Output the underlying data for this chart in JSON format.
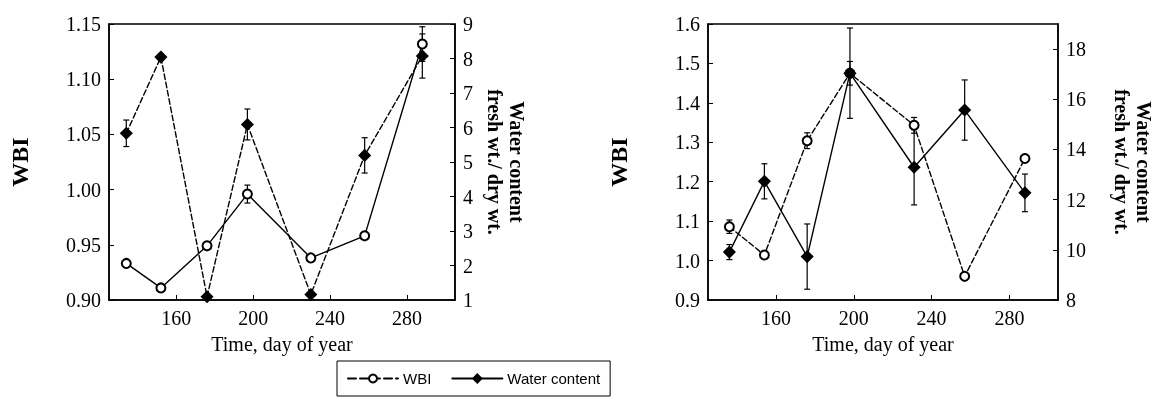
{
  "chart_data": [
    {
      "type": "line",
      "xlabel": "Time, day of year",
      "ylabel": "WBI",
      "y2label": "Water content\nfresh wt./ dry wt.",
      "xlim": [
        125,
        305
      ],
      "xticks": [
        160,
        200,
        240,
        280
      ],
      "ylim": [
        0.9,
        1.15
      ],
      "yticks": [
        {
          "value": 0.9,
          "label": "0.90"
        },
        {
          "value": 0.95,
          "label": "0.95"
        },
        {
          "value": 1.0,
          "label": "1.00"
        },
        {
          "value": 1.05,
          "label": "1.05"
        },
        {
          "value": 1.1,
          "label": "1.10"
        },
        {
          "value": 1.15,
          "label": "1.15"
        }
      ],
      "y2lim": [
        1,
        9
      ],
      "y2ticks": [
        1,
        2,
        3,
        4,
        5,
        6,
        7,
        8,
        9
      ],
      "legend": false,
      "grid": false,
      "series": [
        {
          "axis": "y",
          "line_style": "dashed",
          "marker": "diamond",
          "color": "#000000",
          "x": [
            134,
            152,
            176,
            197,
            230,
            258,
            288
          ],
          "values": [
            1.051,
            1.12,
            0.903,
            1.059,
            0.905,
            1.031,
            1.121
          ],
          "errors": [
            0.012,
            0.003,
            null,
            0.014,
            null,
            0.016,
            0.02
          ]
        },
        {
          "axis": "y2",
          "line_style": "solid",
          "marker": "circle",
          "color": "#000000",
          "x": [
            134,
            152,
            176,
            197,
            230,
            258,
            288
          ],
          "values": [
            2.06,
            1.35,
            2.57,
            4.07,
            2.22,
            2.86,
            8.42
          ],
          "errors": [
            null,
            null,
            null,
            0.26,
            null,
            null,
            0.5
          ]
        }
      ]
    },
    {
      "type": "line",
      "xlabel": "Time, day of year",
      "ylabel": "WBI",
      "y2label": "Water content\nfresh wt./ dry wt.",
      "xlim": [
        125,
        305
      ],
      "xticks": [
        160,
        200,
        240,
        280
      ],
      "ylim": [
        0.9,
        1.6
      ],
      "yticks": [
        {
          "value": 0.9,
          "label": "0.9"
        },
        {
          "value": 1.0,
          "label": "1.0"
        },
        {
          "value": 1.1,
          "label": "1.1"
        },
        {
          "value": 1.2,
          "label": "1.2"
        },
        {
          "value": 1.3,
          "label": "1.3"
        },
        {
          "value": 1.4,
          "label": "1.4"
        },
        {
          "value": 1.5,
          "label": "1.5"
        },
        {
          "value": 1.6,
          "label": "1.6"
        }
      ],
      "y2lim": [
        8,
        19
      ],
      "y2ticks": [
        8,
        10,
        12,
        14,
        16,
        18
      ],
      "legend": "bottom left",
      "grid": false,
      "series": [
        {
          "name": "WBI",
          "axis": "y",
          "line_style": "dashed",
          "marker": "circle",
          "color": "#000000",
          "x": [
            136,
            154,
            176,
            198,
            231,
            257,
            288
          ],
          "values": [
            1.086,
            1.014,
            1.304,
            1.475,
            1.343,
            0.96,
            1.259
          ],
          "errors": [
            0.017,
            null,
            0.02,
            0.03,
            0.02,
            null,
            null
          ]
        },
        {
          "name": "Water content",
          "axis": "y2",
          "line_style": "solid",
          "marker": "diamond",
          "color": "#000000",
          "x": [
            136,
            154,
            176,
            198,
            231,
            257,
            288
          ],
          "values": [
            9.91,
            12.73,
            9.73,
            17.04,
            13.29,
            15.57,
            12.27
          ],
          "errors": [
            0.3,
            0.7,
            1.3,
            1.8,
            1.5,
            1.2,
            0.75
          ]
        }
      ]
    }
  ]
}
